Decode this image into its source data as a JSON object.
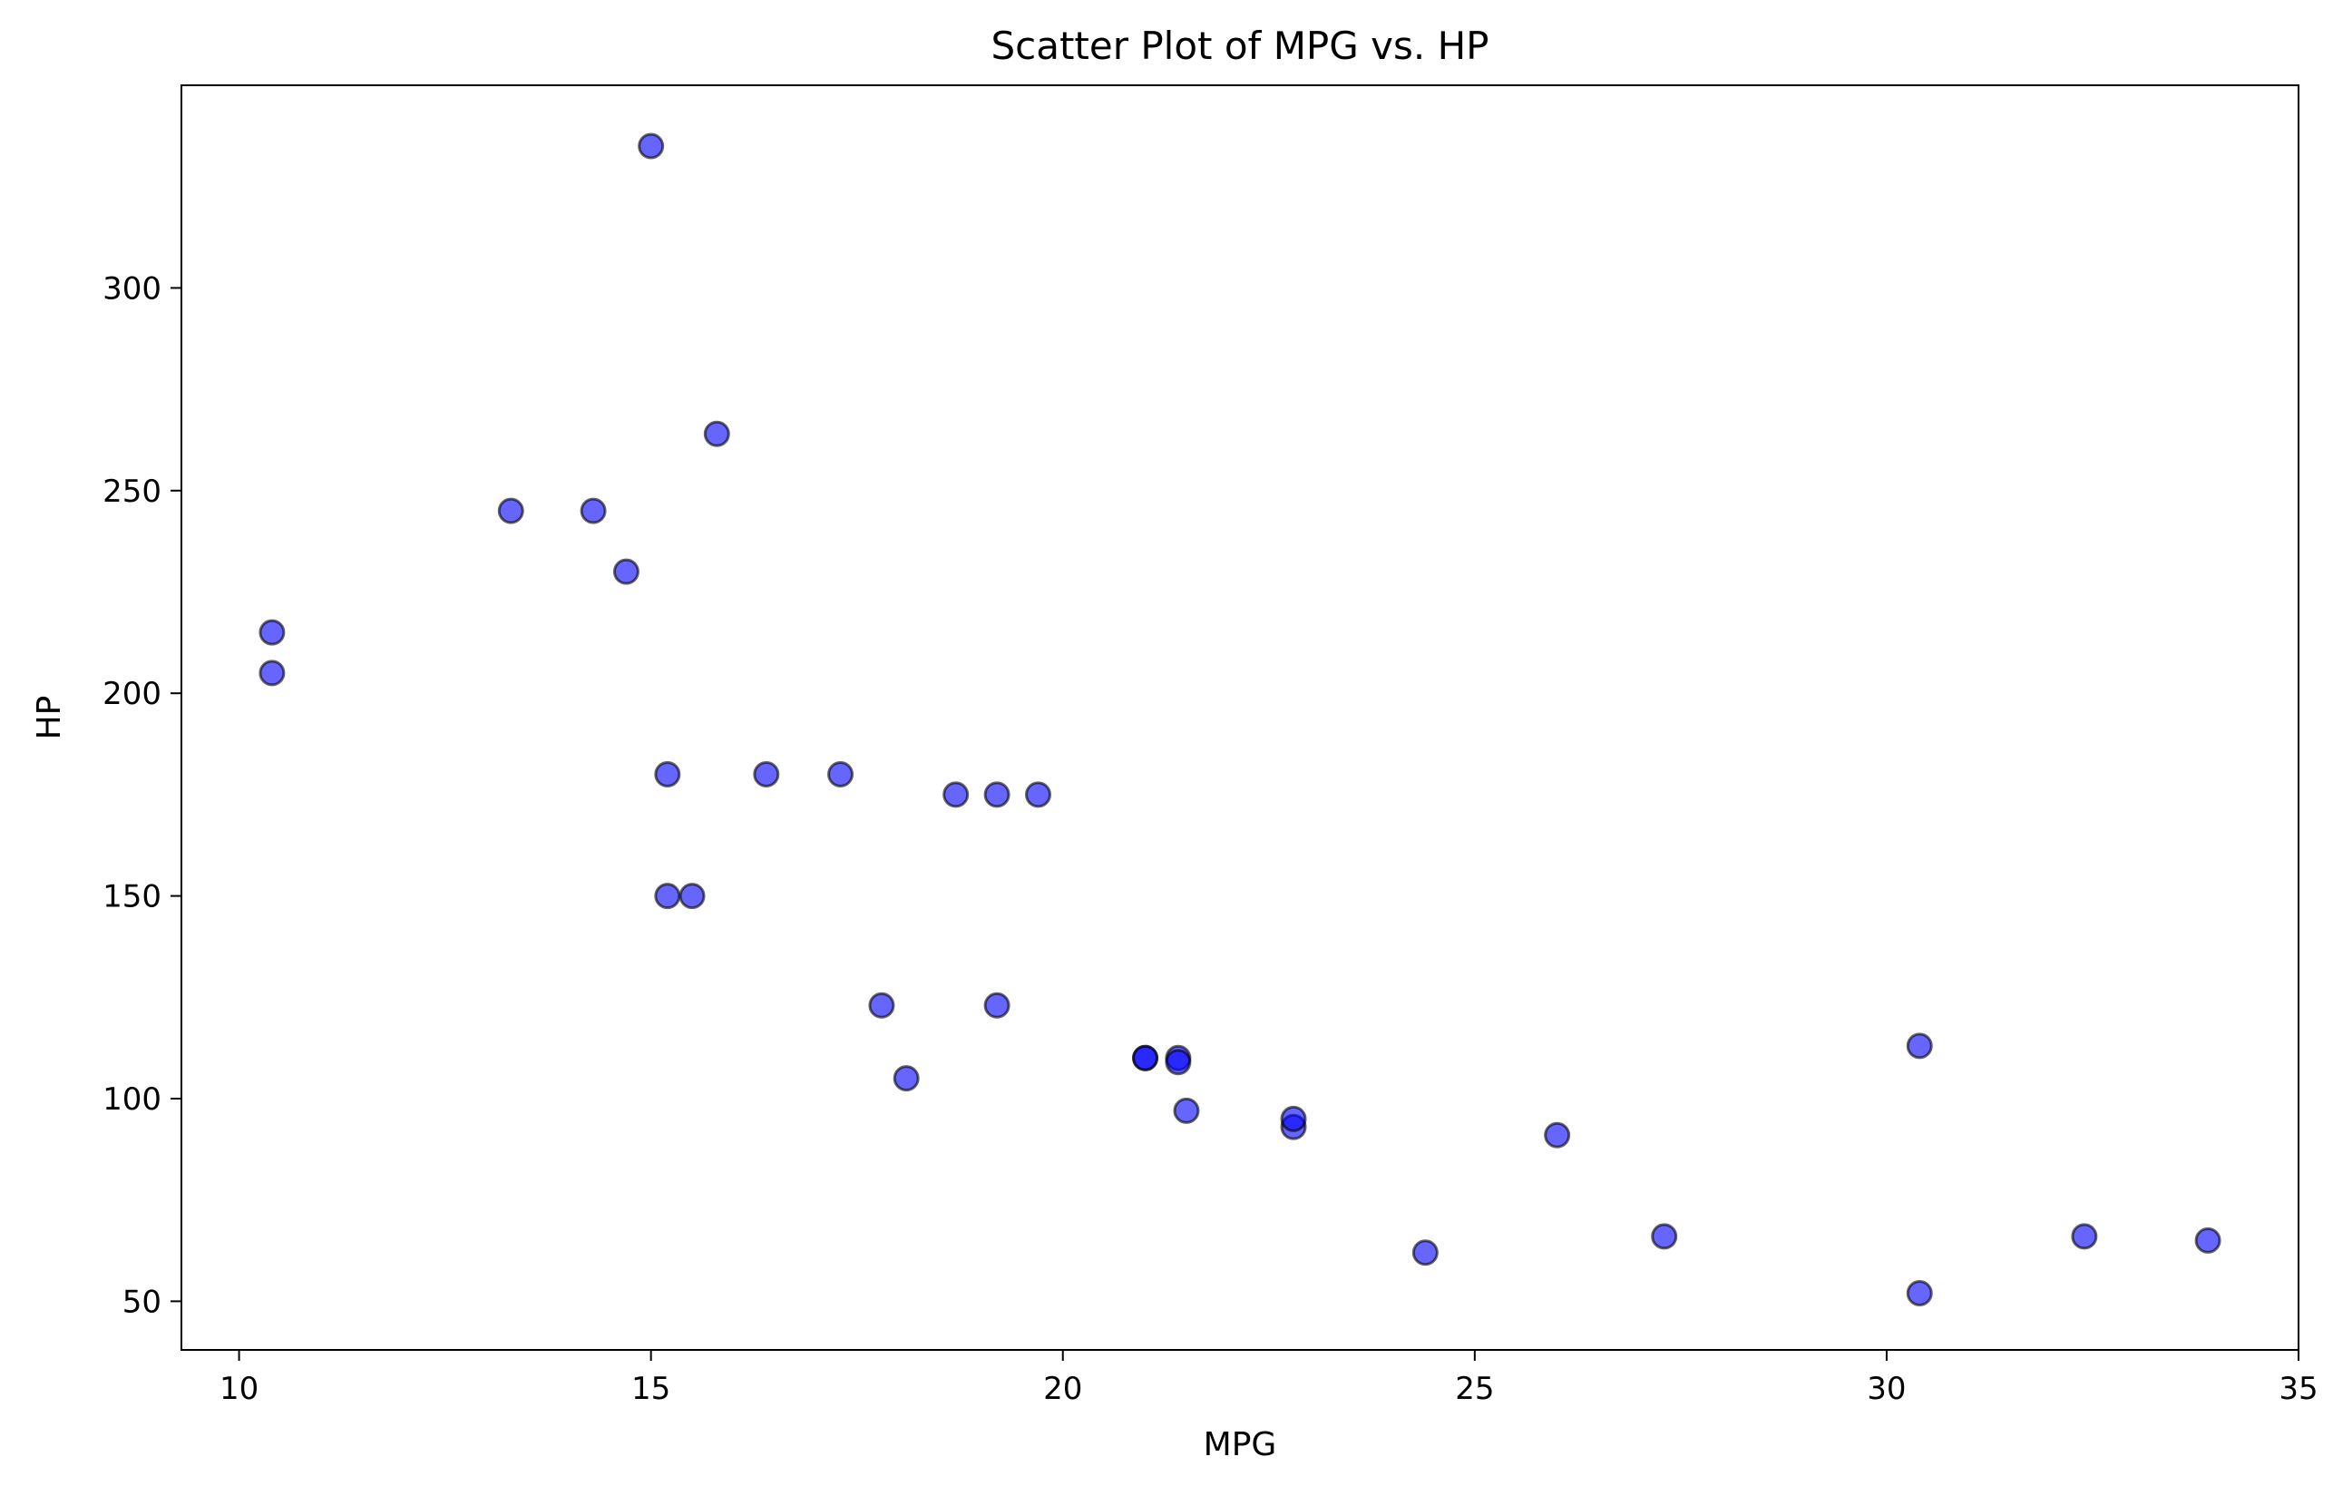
{
  "colors": {
    "point_fill": "#0000ff",
    "point_stroke": "#000000",
    "axes": "#000000",
    "background": "#ffffff"
  },
  "chart_data": {
    "type": "scatter",
    "title": "Scatter Plot of MPG vs. HP",
    "xlabel": "MPG",
    "ylabel": "HP",
    "xlim": [
      9.3,
      35.0
    ],
    "ylim": [
      38,
      350
    ],
    "xticks": [
      10,
      15,
      20,
      25,
      30,
      35
    ],
    "yticks": [
      50,
      100,
      150,
      200,
      250,
      300
    ],
    "grid": false,
    "legend": "none",
    "point_alpha": 0.6,
    "points": [
      {
        "x": 21.0,
        "y": 110
      },
      {
        "x": 21.0,
        "y": 110
      },
      {
        "x": 22.8,
        "y": 93
      },
      {
        "x": 21.4,
        "y": 110
      },
      {
        "x": 18.7,
        "y": 175
      },
      {
        "x": 18.1,
        "y": 105
      },
      {
        "x": 14.3,
        "y": 245
      },
      {
        "x": 24.4,
        "y": 62
      },
      {
        "x": 22.8,
        "y": 95
      },
      {
        "x": 19.2,
        "y": 123
      },
      {
        "x": 17.8,
        "y": 123
      },
      {
        "x": 16.4,
        "y": 180
      },
      {
        "x": 17.3,
        "y": 180
      },
      {
        "x": 15.2,
        "y": 180
      },
      {
        "x": 10.4,
        "y": 205
      },
      {
        "x": 10.4,
        "y": 215
      },
      {
        "x": 14.7,
        "y": 230
      },
      {
        "x": 32.4,
        "y": 66
      },
      {
        "x": 30.4,
        "y": 52
      },
      {
        "x": 33.9,
        "y": 65
      },
      {
        "x": 21.5,
        "y": 97
      },
      {
        "x": 15.5,
        "y": 150
      },
      {
        "x": 15.2,
        "y": 150
      },
      {
        "x": 13.3,
        "y": 245
      },
      {
        "x": 19.2,
        "y": 175
      },
      {
        "x": 27.3,
        "y": 66
      },
      {
        "x": 26.0,
        "y": 91
      },
      {
        "x": 30.4,
        "y": 113
      },
      {
        "x": 15.8,
        "y": 264
      },
      {
        "x": 19.7,
        "y": 175
      },
      {
        "x": 15.0,
        "y": 335
      },
      {
        "x": 21.4,
        "y": 109
      }
    ]
  }
}
